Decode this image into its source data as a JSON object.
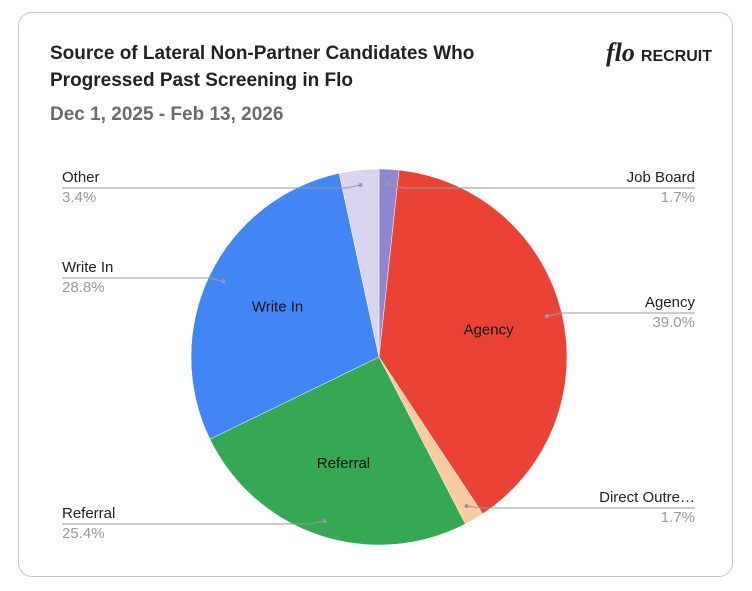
{
  "brand": {
    "mark": "flo",
    "text": "RECRUIT"
  },
  "chart_data": {
    "type": "pie",
    "title": "Source of Lateral Non-Partner Candidates Who Progressed Past Screening in Flo",
    "subtitle": "Dec 1, 2025 - Feb 13, 2026",
    "categories": [
      "Job Board",
      "Agency",
      "Direct Outre…",
      "Referral",
      "Write In",
      "Other"
    ],
    "values": [
      1.7,
      39.0,
      1.7,
      25.4,
      28.8,
      3.4
    ],
    "value_labels": [
      "1.7%",
      "39.0%",
      "1.7%",
      "25.4%",
      "28.8%",
      "3.4%"
    ],
    "colors": [
      "#8e86cf",
      "#ea4335",
      "#f8cba0",
      "#34a853",
      "#4285f4",
      "#d9d5ef"
    ]
  }
}
